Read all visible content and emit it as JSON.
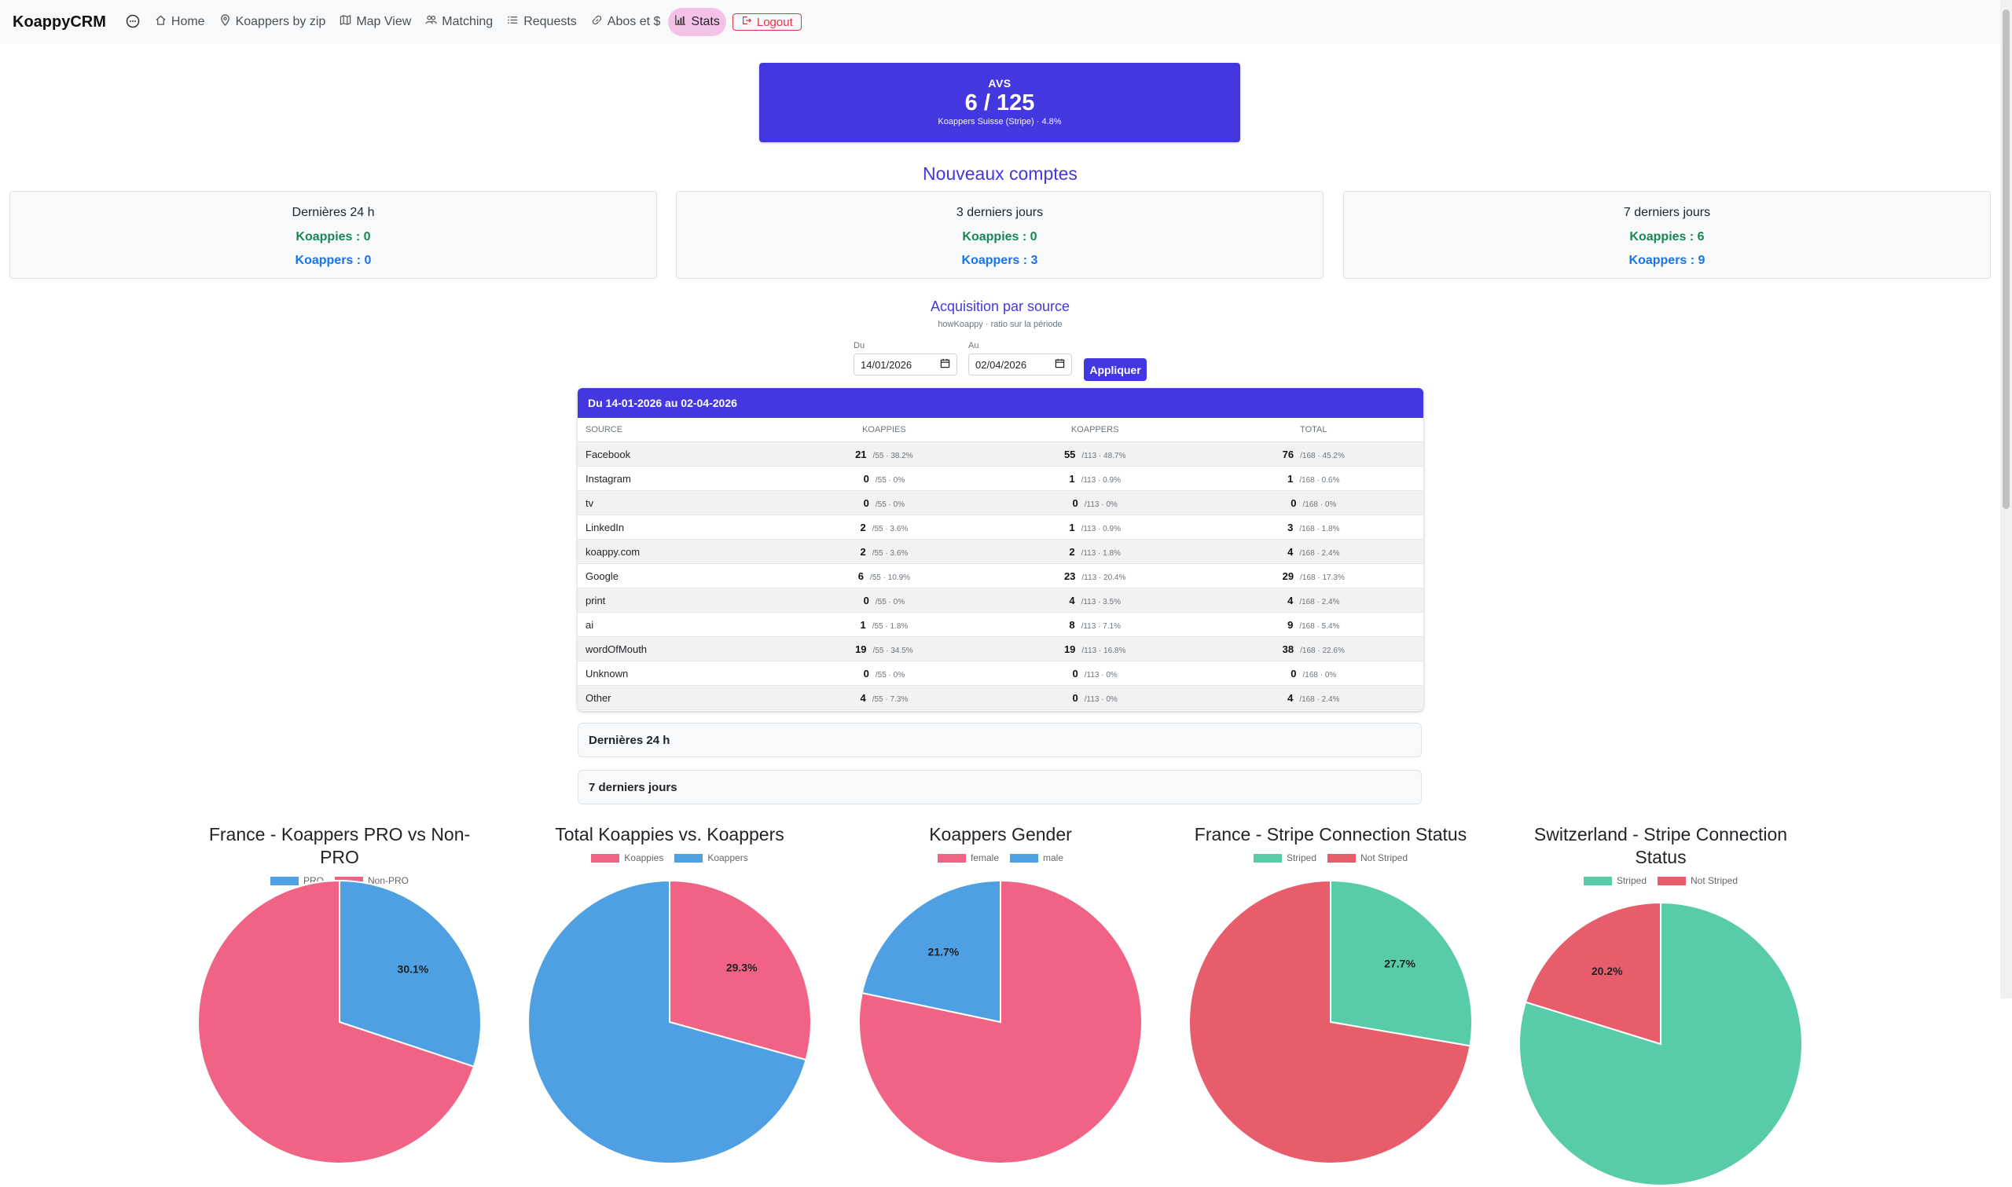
{
  "navbar": {
    "brand": "KoappyCRM",
    "links": [
      {
        "label": "Home",
        "icon": "home-icon"
      },
      {
        "label": "Koappers by zip",
        "icon": "location-pin-icon"
      },
      {
        "label": "Map View",
        "icon": "map-icon"
      },
      {
        "label": "Matching",
        "icon": "people-icon"
      },
      {
        "label": "Requests",
        "icon": "list-icon"
      },
      {
        "label": "Abos et $",
        "icon": "link-icon"
      },
      {
        "label": "Stats",
        "icon": "bar-chart-icon",
        "active": true
      }
    ],
    "logout": "Logout"
  },
  "avs": {
    "title": "AVS",
    "value": "6 / 125",
    "subtitle": "Koappers Suisse (Stripe) · 4.8%"
  },
  "new_accounts": {
    "title": "Nouveaux comptes",
    "cards": [
      {
        "title": "Dernières 24 h",
        "koappies": "Koappies : 0",
        "koappers": "Koappers : 0"
      },
      {
        "title": "3 derniers jours",
        "koappies": "Koappies : 0",
        "koappers": "Koappers : 3"
      },
      {
        "title": "7 derniers jours",
        "koappies": "Koappies : 6",
        "koappers": "Koappers : 9"
      }
    ]
  },
  "acquisition": {
    "title": "Acquisition par source",
    "subtitle": "howKoappy · ratio sur la période",
    "from_label": "Du",
    "from_value": "14/01/2026",
    "to_label": "Au",
    "to_value": "02/04/2026",
    "apply": "Appliquer",
    "table_title": "Du 14-01-2026 au 02-04-2026",
    "headers": [
      "SOURCE",
      "KOAPPIES",
      "KOAPPERS",
      "TOTAL"
    ],
    "rows": [
      {
        "source": "Facebook",
        "koappies": "21",
        "koappies_r": "/55 · 38.2%",
        "koappers": "55",
        "koappers_r": "/113 · 48.7%",
        "total": "76",
        "total_r": "/168 · 45.2%"
      },
      {
        "source": "Instagram",
        "koappies": "0",
        "koappies_r": "/55 · 0%",
        "koappers": "1",
        "koappers_r": "/113 · 0.9%",
        "total": "1",
        "total_r": "/168 · 0.6%"
      },
      {
        "source": "tv",
        "koappies": "0",
        "koappies_r": "/55 · 0%",
        "koappers": "0",
        "koappers_r": "/113 · 0%",
        "total": "0",
        "total_r": "/168 · 0%"
      },
      {
        "source": "LinkedIn",
        "koappies": "2",
        "koappies_r": "/55 · 3.6%",
        "koappers": "1",
        "koappers_r": "/113 · 0.9%",
        "total": "3",
        "total_r": "/168 · 1.8%"
      },
      {
        "source": "koappy.com",
        "koappies": "2",
        "koappies_r": "/55 · 3.6%",
        "koappers": "2",
        "koappers_r": "/113 · 1.8%",
        "total": "4",
        "total_r": "/168 · 2.4%"
      },
      {
        "source": "Google",
        "koappies": "6",
        "koappies_r": "/55 · 10.9%",
        "koappers": "23",
        "koappers_r": "/113 · 20.4%",
        "total": "29",
        "total_r": "/168 · 17.3%"
      },
      {
        "source": "print",
        "koappies": "0",
        "koappies_r": "/55 · 0%",
        "koappers": "4",
        "koappers_r": "/113 · 3.5%",
        "total": "4",
        "total_r": "/168 · 2.4%"
      },
      {
        "source": "ai",
        "koappies": "1",
        "koappies_r": "/55 · 1.8%",
        "koappers": "8",
        "koappers_r": "/113 · 7.1%",
        "total": "9",
        "total_r": "/168 · 5.4%"
      },
      {
        "source": "wordOfMouth",
        "koappies": "19",
        "koappies_r": "/55 · 34.5%",
        "koappers": "19",
        "koappers_r": "/113 · 16.8%",
        "total": "38",
        "total_r": "/168 · 22.6%"
      },
      {
        "source": "Unknown",
        "koappies": "0",
        "koappies_r": "/55 · 0%",
        "koappers": "0",
        "koappers_r": "/113 · 0%",
        "total": "0",
        "total_r": "/168 · 0%"
      },
      {
        "source": "Other",
        "koappies": "4",
        "koappies_r": "/55 · 7.3%",
        "koappers": "0",
        "koappers_r": "/113 · 0%",
        "total": "4",
        "total_r": "/168 · 2.4%"
      }
    ],
    "collapsed": [
      "Dernières 24 h",
      "7 derniers jours"
    ]
  },
  "colors": {
    "accent": "#4338e0",
    "green": "#198754",
    "blue": "#1a73e8",
    "pie_blue": "#4f9fe3",
    "pie_pink": "#f06384",
    "pie_teal": "#58cca9",
    "pie_red": "#e85d6c"
  },
  "chart_data": [
    {
      "type": "pie",
      "title": "France - Koappers PRO vs Non-PRO",
      "labels": [
        "PRO",
        "Non-PRO"
      ],
      "values": [
        30.1,
        69.9
      ],
      "data_labels": [
        "30.1%"
      ]
    },
    {
      "type": "pie",
      "title": "Total Koappies vs. Koappers",
      "labels": [
        "Koappies",
        "Koappers"
      ],
      "values": [
        29.3,
        70.7
      ],
      "data_labels": [
        "29.3%"
      ]
    },
    {
      "type": "pie",
      "title": "Koappers Gender",
      "labels": [
        "female",
        "male"
      ],
      "values": [
        78.3,
        21.7
      ],
      "data_labels": [
        "21.7%"
      ]
    },
    {
      "type": "pie",
      "title": "France - Stripe Connection Status",
      "labels": [
        "Striped",
        "Not Striped"
      ],
      "values": [
        27.7,
        72.3
      ],
      "data_labels": [
        "27.7%"
      ]
    },
    {
      "type": "pie",
      "title": "Switzerland - Stripe Connection Status",
      "labels": [
        "Striped",
        "Not Striped"
      ],
      "values": [
        79.8,
        20.2
      ],
      "data_labels": [
        "20.2%"
      ]
    }
  ]
}
